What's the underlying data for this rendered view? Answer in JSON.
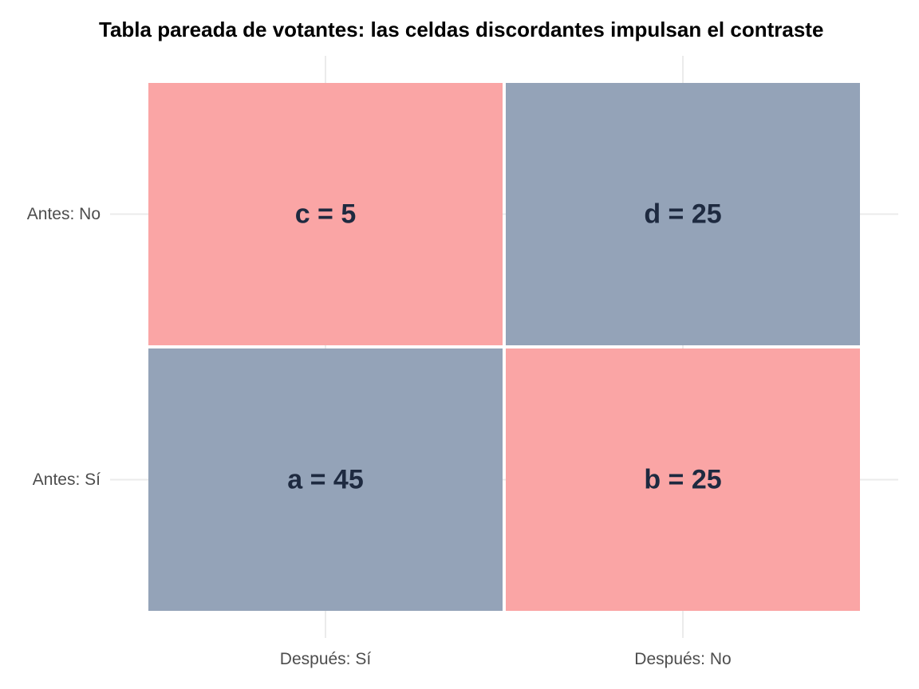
{
  "chart_data": {
    "type": "heatmap",
    "title": "Tabla pareada de votantes: las celdas discordantes impulsan el contraste",
    "x_categories": [
      "Después: Sí",
      "Después: No"
    ],
    "y_categories": [
      "Antes: Sí",
      "Antes: No"
    ],
    "cells": [
      {
        "row": "Antes: No",
        "col": "Después: Sí",
        "label": "c = 5",
        "value": 5,
        "type": "discordant"
      },
      {
        "row": "Antes: No",
        "col": "Después: No",
        "label": "d = 25",
        "value": 25,
        "type": "concordant"
      },
      {
        "row": "Antes: Sí",
        "col": "Después: Sí",
        "label": "a = 45",
        "value": 45,
        "type": "concordant"
      },
      {
        "row": "Antes: Sí",
        "col": "Después: No",
        "label": "b = 25",
        "value": 25,
        "type": "discordant"
      }
    ],
    "colors": {
      "discordant": "#faa5a5",
      "concordant": "#94a3b8",
      "text": "#1e2a40",
      "grid": "#ebebeb"
    },
    "grid": true,
    "legend": "none"
  }
}
